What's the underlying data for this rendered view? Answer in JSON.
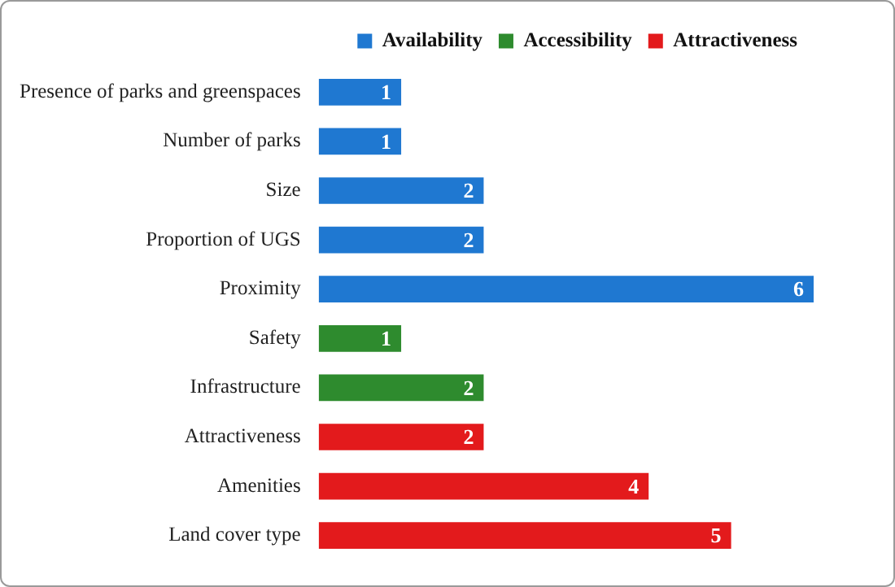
{
  "chart_data": {
    "type": "bar",
    "orientation": "horizontal",
    "stacked": true,
    "legend": "top right",
    "data_labels": true,
    "categories": [
      "Presence of parks and greenspaces",
      "Number of parks",
      "Size",
      "Proportion of UGS",
      "Proximity",
      "Safety",
      "Infrastructure",
      "Attractiveness",
      "Amenities",
      "Land cover type"
    ],
    "series": [
      {
        "name": "Availability",
        "color": "#1f78d1",
        "values": [
          1,
          1,
          2,
          2,
          6,
          null,
          null,
          null,
          null,
          null
        ]
      },
      {
        "name": "Accessibility",
        "color": "#2e8b2e",
        "values": [
          null,
          null,
          null,
          null,
          null,
          1,
          2,
          null,
          null,
          null
        ]
      },
      {
        "name": "Attractiveness",
        "color": "#e31a1c",
        "values": [
          null,
          null,
          null,
          null,
          null,
          null,
          null,
          2,
          4,
          5
        ]
      }
    ]
  }
}
